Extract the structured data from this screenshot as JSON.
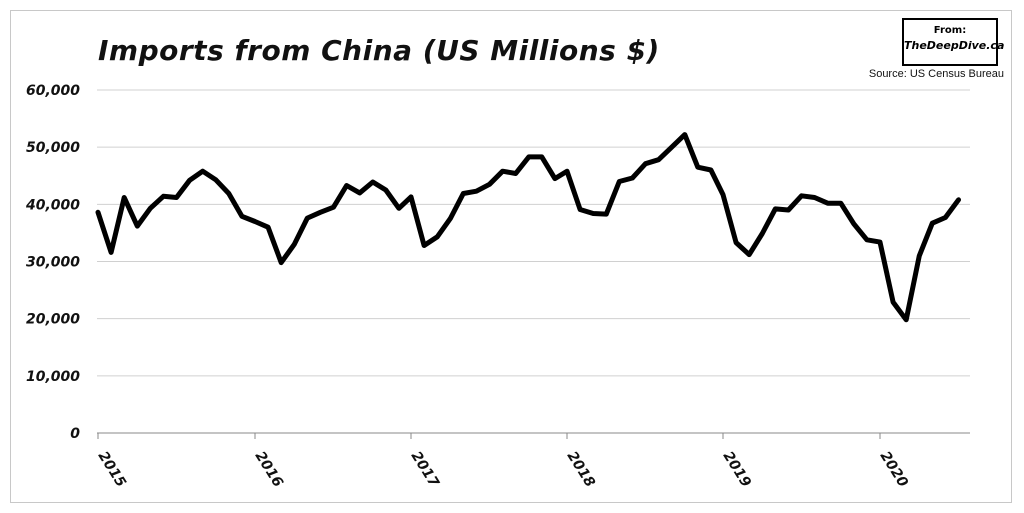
{
  "header": {
    "title": "Imports from China (US Millions $)",
    "badge_from": "From:",
    "badge_site": "TheDeepDive.ca",
    "source": "Source: US Census Bureau"
  },
  "chart_data": {
    "type": "line",
    "title": "Imports from China (US Millions $)",
    "xlabel": "",
    "ylabel": "",
    "ylim": [
      0,
      60000
    ],
    "yticks": [
      "0",
      "10,000",
      "20,000",
      "30,000",
      "40,000",
      "50,000",
      "60,000"
    ],
    "ytick_values": [
      0,
      10000,
      20000,
      30000,
      40000,
      50000,
      60000
    ],
    "xticks": [
      "2015",
      "2016",
      "2017",
      "2018",
      "2019",
      "2020"
    ],
    "grid": true,
    "color": "#000000",
    "series": [
      {
        "name": "",
        "x": [
          "2015-01",
          "2015-02",
          "2015-03",
          "2015-04",
          "2015-05",
          "2015-06",
          "2015-07",
          "2015-08",
          "2015-09",
          "2015-10",
          "2015-11",
          "2015-12",
          "2016-01",
          "2016-02",
          "2016-03",
          "2016-04",
          "2016-05",
          "2016-06",
          "2016-07",
          "2016-08",
          "2016-09",
          "2016-10",
          "2016-11",
          "2016-12",
          "2017-01",
          "2017-02",
          "2017-03",
          "2017-04",
          "2017-05",
          "2017-06",
          "2017-07",
          "2017-08",
          "2017-09",
          "2017-10",
          "2017-11",
          "2017-12",
          "2018-01",
          "2018-02",
          "2018-03",
          "2018-04",
          "2018-05",
          "2018-06",
          "2018-07",
          "2018-08",
          "2018-09",
          "2018-10",
          "2018-11",
          "2018-12",
          "2019-01",
          "2019-02",
          "2019-03",
          "2019-04",
          "2019-05",
          "2019-06",
          "2019-07",
          "2019-08",
          "2019-09",
          "2019-10",
          "2019-11",
          "2019-12",
          "2020-01",
          "2020-02",
          "2020-03",
          "2020-04",
          "2020-05",
          "2020-06",
          "2020-07"
        ],
        "values": [
          38600,
          31600,
          41200,
          36200,
          39300,
          41400,
          41200,
          44200,
          45800,
          44300,
          41900,
          37900,
          37000,
          36000,
          29800,
          33000,
          37600,
          38600,
          39500,
          43300,
          42000,
          43900,
          42500,
          39300,
          41300,
          32800,
          34300,
          37500,
          41900,
          42300,
          43500,
          45800,
          45400,
          48300,
          48300,
          44500,
          45800,
          39100,
          38400,
          38300,
          44000,
          44600,
          47100,
          47800,
          50000,
          52200,
          46500,
          46000,
          41700,
          33300,
          31200,
          34900,
          39200,
          39000,
          41500,
          41200,
          40200,
          40200,
          36600,
          33800,
          33400,
          22900,
          19800,
          31000,
          36700,
          37700,
          40800
        ]
      }
    ]
  }
}
